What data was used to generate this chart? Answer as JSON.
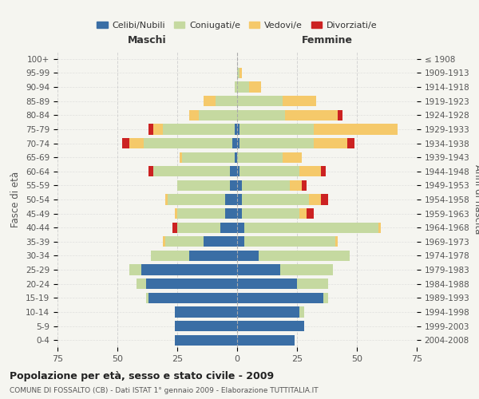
{
  "age_groups": [
    "0-4",
    "5-9",
    "10-14",
    "15-19",
    "20-24",
    "25-29",
    "30-34",
    "35-39",
    "40-44",
    "45-49",
    "50-54",
    "55-59",
    "60-64",
    "65-69",
    "70-74",
    "75-79",
    "80-84",
    "85-89",
    "90-94",
    "95-99",
    "100+"
  ],
  "birth_years": [
    "2004-2008",
    "1999-2003",
    "1994-1998",
    "1989-1993",
    "1984-1988",
    "1979-1983",
    "1974-1978",
    "1969-1973",
    "1964-1968",
    "1959-1963",
    "1954-1958",
    "1949-1953",
    "1944-1948",
    "1939-1943",
    "1934-1938",
    "1929-1933",
    "1924-1928",
    "1919-1923",
    "1914-1918",
    "1909-1913",
    "≤ 1908"
  ],
  "colors": {
    "celibi": "#3a6ea5",
    "coniugati": "#c5d9a0",
    "vedovi": "#f5c96a",
    "divorziati": "#cc2222"
  },
  "males": {
    "celibi": [
      26,
      26,
      26,
      37,
      38,
      40,
      20,
      14,
      7,
      5,
      5,
      3,
      3,
      1,
      2,
      1,
      0,
      0,
      0,
      0,
      0
    ],
    "coniugati": [
      0,
      0,
      0,
      1,
      4,
      5,
      16,
      16,
      18,
      20,
      24,
      22,
      32,
      22,
      37,
      30,
      16,
      9,
      1,
      0,
      0
    ],
    "vedovi": [
      0,
      0,
      0,
      0,
      0,
      0,
      0,
      1,
      0,
      1,
      1,
      0,
      0,
      1,
      6,
      4,
      4,
      5,
      0,
      0,
      0
    ],
    "divorziati": [
      0,
      0,
      0,
      0,
      0,
      0,
      0,
      0,
      2,
      0,
      0,
      0,
      2,
      0,
      3,
      2,
      0,
      0,
      0,
      0,
      0
    ]
  },
  "females": {
    "celibi": [
      24,
      28,
      26,
      36,
      25,
      18,
      9,
      3,
      3,
      2,
      2,
      2,
      1,
      0,
      1,
      1,
      0,
      0,
      0,
      0,
      0
    ],
    "coniugati": [
      0,
      0,
      2,
      2,
      13,
      22,
      38,
      38,
      56,
      24,
      28,
      20,
      25,
      19,
      31,
      31,
      20,
      19,
      5,
      1,
      0
    ],
    "vedovi": [
      0,
      0,
      0,
      0,
      0,
      0,
      0,
      1,
      1,
      3,
      5,
      5,
      9,
      8,
      14,
      35,
      22,
      14,
      5,
      1,
      0
    ],
    "divorziati": [
      0,
      0,
      0,
      0,
      0,
      0,
      0,
      0,
      0,
      3,
      3,
      2,
      2,
      0,
      3,
      0,
      2,
      0,
      0,
      0,
      0
    ]
  },
  "title": "Popolazione per età, sesso e stato civile - 2009",
  "subtitle": "COMUNE DI FOSSALTO (CB) - Dati ISTAT 1° gennaio 2009 - Elaborazione TUTTITALIA.IT",
  "xlabel_left": "Maschi",
  "xlabel_right": "Femmine",
  "ylabel_left": "Fasce di età",
  "ylabel_right": "Anni di nascita",
  "legend_labels": [
    "Celibi/Nubili",
    "Coniugati/e",
    "Vedovi/e",
    "Divorziati/e"
  ],
  "xlim": 75,
  "bg_color": "#f5f5f0",
  "grid_color": "#cccccc"
}
